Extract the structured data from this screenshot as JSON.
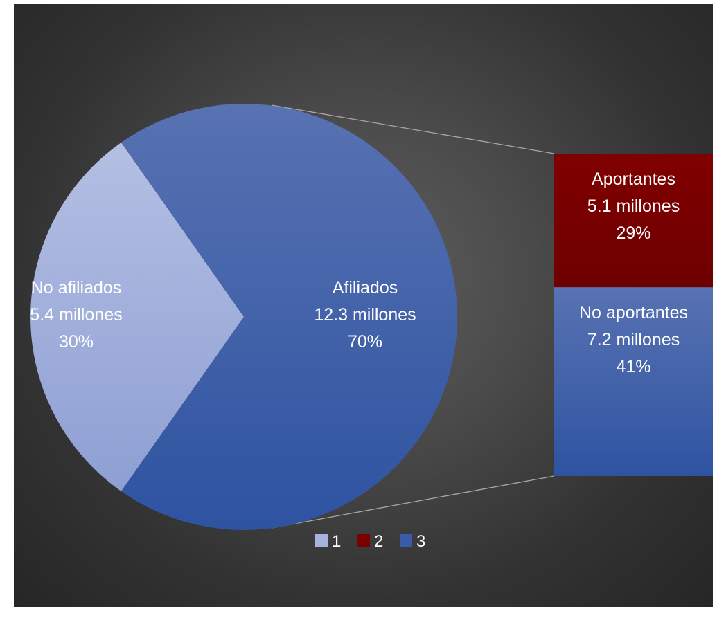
{
  "chart_data": {
    "type": "pie",
    "variant": "bar-of-pie",
    "pie": [
      {
        "label": "No afiliados",
        "value_text": "5.4 millones",
        "pct_text": "30%",
        "value": 5.4,
        "percent": 30,
        "color": "#a6b3dd"
      },
      {
        "label": "Afiliados",
        "value_text": "12.3 millones",
        "pct_text": "70%",
        "value": 12.3,
        "percent": 70,
        "color": "#3a5ca8"
      }
    ],
    "bar": [
      {
        "label": "Aportantes",
        "value_text": "5.1 millones",
        "pct_text": "29%",
        "value": 5.1,
        "percent": 29,
        "color": "#7b0000"
      },
      {
        "label": "No aportantes",
        "value_text": "7.2 millones",
        "pct_text": "41%",
        "value": 7.2,
        "percent": 41,
        "color": "#3a5ca8"
      }
    ],
    "legend": {
      "position": "bottom",
      "entries": [
        {
          "label": "1",
          "color": "#a6b3dd"
        },
        {
          "label": "2",
          "color": "#7b0000"
        },
        {
          "label": "3",
          "color": "#3a5ca8"
        }
      ]
    }
  }
}
